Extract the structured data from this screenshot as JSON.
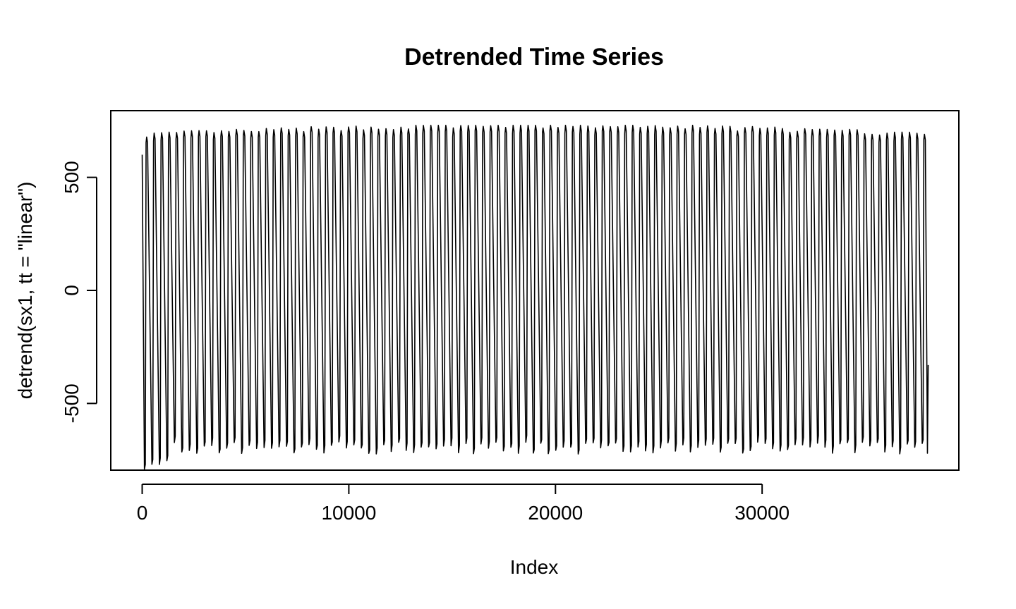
{
  "chart_data": {
    "type": "line",
    "title": "Detrended Time Series",
    "xlabel": "Index",
    "ylabel": "detrend(sx1, tt = \"linear\")",
    "x_ticks": [
      0,
      10000,
      20000,
      30000
    ],
    "x_tick_labels": [
      "0",
      "10000",
      "20000",
      "30000"
    ],
    "y_ticks": [
      -500,
      0,
      500
    ],
    "y_tick_labels": [
      "-500",
      "0",
      "500"
    ],
    "xlim": [
      -1520,
      39520
    ],
    "ylim": [
      -795,
      795
    ],
    "grid": false,
    "legend": "none",
    "series": [
      {
        "line_color": "#000000",
        "x_range": [
          0,
          38000
        ],
        "cycles": 105,
        "start_value": 600,
        "peak_value_range": [
          640,
          730
        ],
        "trough_value_range": [
          -745,
          -645
        ]
      }
    ]
  }
}
